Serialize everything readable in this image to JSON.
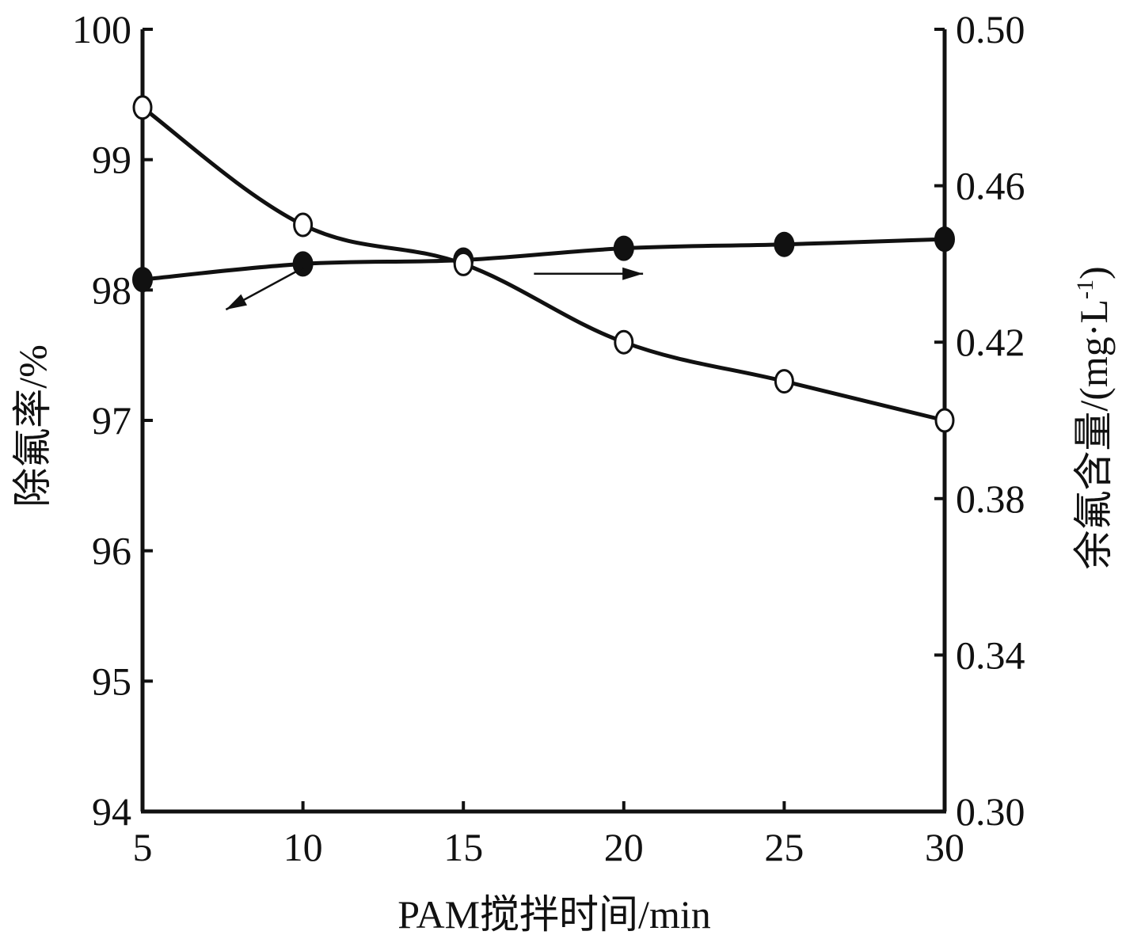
{
  "chart_data": {
    "type": "line",
    "x": [
      5,
      10,
      15,
      20,
      25,
      30
    ],
    "x_ticks": [
      "5",
      "10",
      "15",
      "20",
      "25",
      "30"
    ],
    "xlabel": "PAM搅拌时间/min",
    "xlim": [
      5,
      30
    ],
    "y_left": {
      "label": "除氟率/%",
      "lim": [
        94,
        100
      ],
      "ticks": [
        "94",
        "95",
        "96",
        "97",
        "98",
        "99",
        "100"
      ],
      "tick_values": [
        94,
        95,
        96,
        97,
        98,
        99,
        100
      ]
    },
    "y_right": {
      "label_main": "余氟含量/(mg·L",
      "label_sup": "-1",
      "label_close": ")",
      "lim": [
        0.3,
        0.5
      ],
      "ticks": [
        "0.30",
        "0.34",
        "0.38",
        "0.42",
        "0.46",
        "0.50"
      ],
      "tick_values": [
        0.3,
        0.34,
        0.38,
        0.42,
        0.46,
        0.5
      ]
    },
    "series": [
      {
        "axis": "left",
        "marker": "filled-circle",
        "values": [
          98.08,
          98.2,
          98.23,
          98.32,
          98.35,
          98.39
        ]
      },
      {
        "axis": "right",
        "marker": "open-circle",
        "values": [
          0.48,
          0.45,
          0.44,
          0.42,
          0.41,
          0.4
        ]
      }
    ],
    "annotations": [
      {
        "type": "arrow",
        "direction": "left",
        "points_to_axis": "left",
        "from": [
          10.0,
          98.17
        ],
        "to": [
          7.6,
          97.85
        ]
      },
      {
        "type": "arrow",
        "direction": "right",
        "points_to_axis": "right",
        "from": [
          17.2,
          0.4375
        ],
        "to": [
          20.6,
          0.4375
        ]
      }
    ],
    "grid": false,
    "legend": "none",
    "colors": {
      "line": "#111111",
      "open_marker_fill": "#ffffff"
    }
  }
}
